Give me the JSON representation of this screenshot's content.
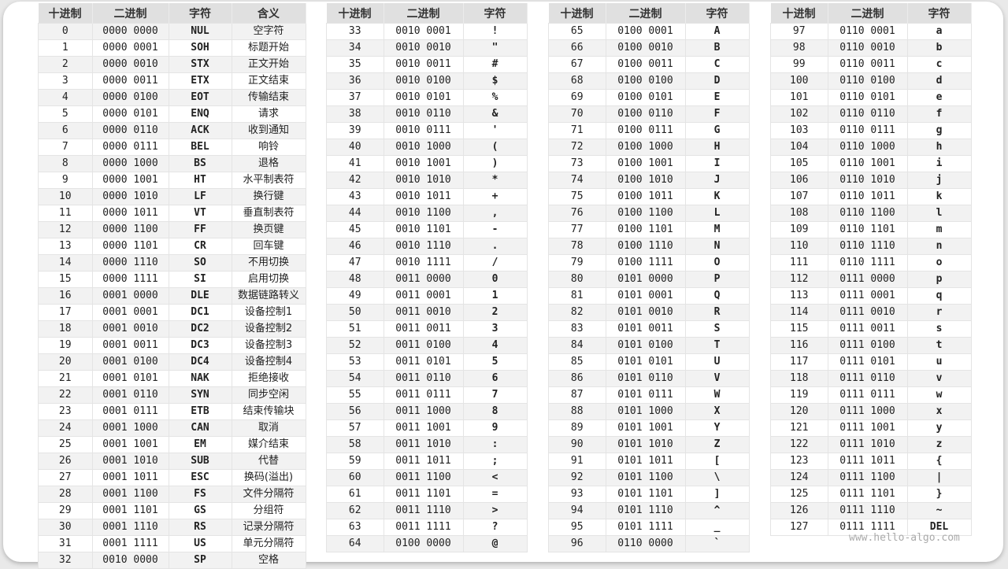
{
  "headers": {
    "dec": "十进制",
    "bin": "二进制",
    "char": "字符",
    "meaning": "含义"
  },
  "watermark": "www.hello-algo.com",
  "tables": [
    {
      "rows": [
        [
          "0",
          "0000 0000",
          "NUL",
          "空字符"
        ],
        [
          "1",
          "0000 0001",
          "SOH",
          "标题开始"
        ],
        [
          "2",
          "0000 0010",
          "STX",
          "正文开始"
        ],
        [
          "3",
          "0000 0011",
          "ETX",
          "正文结束"
        ],
        [
          "4",
          "0000 0100",
          "EOT",
          "传输结束"
        ],
        [
          "5",
          "0000 0101",
          "ENQ",
          "请求"
        ],
        [
          "6",
          "0000 0110",
          "ACK",
          "收到通知"
        ],
        [
          "7",
          "0000 0111",
          "BEL",
          "响铃"
        ],
        [
          "8",
          "0000 1000",
          "BS",
          "退格"
        ],
        [
          "9",
          "0000 1001",
          "HT",
          "水平制表符"
        ],
        [
          "10",
          "0000 1010",
          "LF",
          "换行键"
        ],
        [
          "11",
          "0000 1011",
          "VT",
          "垂直制表符"
        ],
        [
          "12",
          "0000 1100",
          "FF",
          "换页键"
        ],
        [
          "13",
          "0000 1101",
          "CR",
          "回车键"
        ],
        [
          "14",
          "0000 1110",
          "SO",
          "不用切换"
        ],
        [
          "15",
          "0000 1111",
          "SI",
          "启用切换"
        ],
        [
          "16",
          "0001 0000",
          "DLE",
          "数据链路转义"
        ],
        [
          "17",
          "0001 0001",
          "DC1",
          "设备控制1"
        ],
        [
          "18",
          "0001 0010",
          "DC2",
          "设备控制2"
        ],
        [
          "19",
          "0001 0011",
          "DC3",
          "设备控制3"
        ],
        [
          "20",
          "0001 0100",
          "DC4",
          "设备控制4"
        ],
        [
          "21",
          "0001 0101",
          "NAK",
          "拒绝接收"
        ],
        [
          "22",
          "0001 0110",
          "SYN",
          "同步空闲"
        ],
        [
          "23",
          "0001 0111",
          "ETB",
          "结束传输块"
        ],
        [
          "24",
          "0001 1000",
          "CAN",
          "取消"
        ],
        [
          "25",
          "0001 1001",
          "EM",
          "媒介结束"
        ],
        [
          "26",
          "0001 1010",
          "SUB",
          "代替"
        ],
        [
          "27",
          "0001 1011",
          "ESC",
          "换码(溢出)"
        ],
        [
          "28",
          "0001 1100",
          "FS",
          "文件分隔符"
        ],
        [
          "29",
          "0001 1101",
          "GS",
          "分组符"
        ],
        [
          "30",
          "0001 1110",
          "RS",
          "记录分隔符"
        ],
        [
          "31",
          "0001 1111",
          "US",
          "单元分隔符"
        ],
        [
          "32",
          "0010 0000",
          "SP",
          "空格"
        ]
      ]
    },
    {
      "rows": [
        [
          "33",
          "0010 0001",
          "!"
        ],
        [
          "34",
          "0010 0010",
          "\""
        ],
        [
          "35",
          "0010 0011",
          "#"
        ],
        [
          "36",
          "0010 0100",
          "$"
        ],
        [
          "37",
          "0010 0101",
          "%"
        ],
        [
          "38",
          "0010 0110",
          "&"
        ],
        [
          "39",
          "0010 0111",
          "'"
        ],
        [
          "40",
          "0010 1000",
          "("
        ],
        [
          "41",
          "0010 1001",
          ")"
        ],
        [
          "42",
          "0010 1010",
          "*"
        ],
        [
          "43",
          "0010 1011",
          "+"
        ],
        [
          "44",
          "0010 1100",
          ","
        ],
        [
          "45",
          "0010 1101",
          "-"
        ],
        [
          "46",
          "0010 1110",
          "."
        ],
        [
          "47",
          "0010 1111",
          "/"
        ],
        [
          "48",
          "0011 0000",
          "0"
        ],
        [
          "49",
          "0011 0001",
          "1"
        ],
        [
          "50",
          "0011 0010",
          "2"
        ],
        [
          "51",
          "0011 0011",
          "3"
        ],
        [
          "52",
          "0011 0100",
          "4"
        ],
        [
          "53",
          "0011 0101",
          "5"
        ],
        [
          "54",
          "0011 0110",
          "6"
        ],
        [
          "55",
          "0011 0111",
          "7"
        ],
        [
          "56",
          "0011 1000",
          "8"
        ],
        [
          "57",
          "0011 1001",
          "9"
        ],
        [
          "58",
          "0011 1010",
          ":"
        ],
        [
          "59",
          "0011 1011",
          ";"
        ],
        [
          "60",
          "0011 1100",
          "<"
        ],
        [
          "61",
          "0011 1101",
          "="
        ],
        [
          "62",
          "0011 1110",
          ">"
        ],
        [
          "63",
          "0011 1111",
          "?"
        ],
        [
          "64",
          "0100 0000",
          "@"
        ]
      ]
    },
    {
      "rows": [
        [
          "65",
          "0100 0001",
          "A"
        ],
        [
          "66",
          "0100 0010",
          "B"
        ],
        [
          "67",
          "0100 0011",
          "C"
        ],
        [
          "68",
          "0100 0100",
          "D"
        ],
        [
          "69",
          "0100 0101",
          "E"
        ],
        [
          "70",
          "0100 0110",
          "F"
        ],
        [
          "71",
          "0100 0111",
          "G"
        ],
        [
          "72",
          "0100 1000",
          "H"
        ],
        [
          "73",
          "0100 1001",
          "I"
        ],
        [
          "74",
          "0100 1010",
          "J"
        ],
        [
          "75",
          "0100 1011",
          "K"
        ],
        [
          "76",
          "0100 1100",
          "L"
        ],
        [
          "77",
          "0100 1101",
          "M"
        ],
        [
          "78",
          "0100 1110",
          "N"
        ],
        [
          "79",
          "0100 1111",
          "O"
        ],
        [
          "80",
          "0101 0000",
          "P"
        ],
        [
          "81",
          "0101 0001",
          "Q"
        ],
        [
          "82",
          "0101 0010",
          "R"
        ],
        [
          "83",
          "0101 0011",
          "S"
        ],
        [
          "84",
          "0101 0100",
          "T"
        ],
        [
          "85",
          "0101 0101",
          "U"
        ],
        [
          "86",
          "0101 0110",
          "V"
        ],
        [
          "87",
          "0101 0111",
          "W"
        ],
        [
          "88",
          "0101 1000",
          "X"
        ],
        [
          "89",
          "0101 1001",
          "Y"
        ],
        [
          "90",
          "0101 1010",
          "Z"
        ],
        [
          "91",
          "0101 1011",
          "["
        ],
        [
          "92",
          "0101 1100",
          "\\"
        ],
        [
          "93",
          "0101 1101",
          "]"
        ],
        [
          "94",
          "0101 1110",
          "^"
        ],
        [
          "95",
          "0101 1111",
          "_"
        ],
        [
          "96",
          "0110 0000",
          "`"
        ]
      ]
    },
    {
      "rows": [
        [
          "97",
          "0110 0001",
          "a"
        ],
        [
          "98",
          "0110 0010",
          "b"
        ],
        [
          "99",
          "0110 0011",
          "c"
        ],
        [
          "100",
          "0110 0100",
          "d"
        ],
        [
          "101",
          "0110 0101",
          "e"
        ],
        [
          "102",
          "0110 0110",
          "f"
        ],
        [
          "103",
          "0110 0111",
          "g"
        ],
        [
          "104",
          "0110 1000",
          "h"
        ],
        [
          "105",
          "0110 1001",
          "i"
        ],
        [
          "106",
          "0110 1010",
          "j"
        ],
        [
          "107",
          "0110 1011",
          "k"
        ],
        [
          "108",
          "0110 1100",
          "l"
        ],
        [
          "109",
          "0110 1101",
          "m"
        ],
        [
          "110",
          "0110 1110",
          "n"
        ],
        [
          "111",
          "0110 1111",
          "o"
        ],
        [
          "112",
          "0111 0000",
          "p"
        ],
        [
          "113",
          "0111 0001",
          "q"
        ],
        [
          "114",
          "0111 0010",
          "r"
        ],
        [
          "115",
          "0111 0011",
          "s"
        ],
        [
          "116",
          "0111 0100",
          "t"
        ],
        [
          "117",
          "0111 0101",
          "u"
        ],
        [
          "118",
          "0111 0110",
          "v"
        ],
        [
          "119",
          "0111 0111",
          "w"
        ],
        [
          "120",
          "0111 1000",
          "x"
        ],
        [
          "121",
          "0111 1001",
          "y"
        ],
        [
          "122",
          "0111 1010",
          "z"
        ],
        [
          "123",
          "0111 1011",
          "{"
        ],
        [
          "124",
          "0111 1100",
          "|"
        ],
        [
          "125",
          "0111 1101",
          "}"
        ],
        [
          "126",
          "0111 1110",
          "~"
        ],
        [
          "127",
          "0111 1111",
          "DEL"
        ]
      ]
    }
  ]
}
